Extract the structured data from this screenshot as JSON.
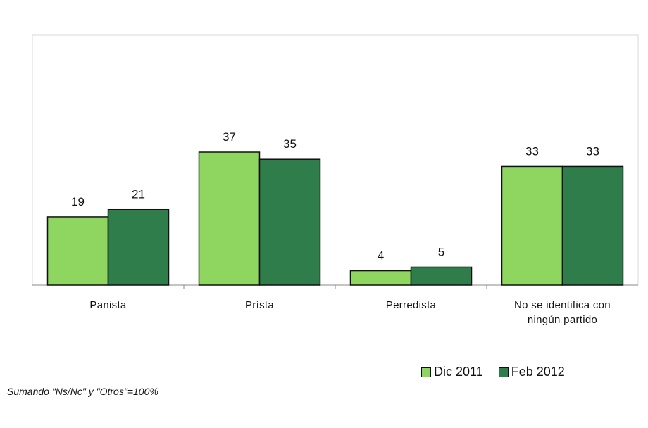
{
  "chart_data": {
    "type": "bar",
    "categories": [
      "Panista",
      "Prísta",
      "Perredista",
      "No se identifica con ningún partido"
    ],
    "category_lines": [
      [
        "Panista"
      ],
      [
        "Prísta"
      ],
      [
        "Perredista"
      ],
      [
        "No se identifica con",
        "ningún partido"
      ]
    ],
    "series": [
      {
        "name": "Dic 2011",
        "values": [
          19,
          37,
          4,
          33
        ],
        "color": "#8ed660"
      },
      {
        "name": "Feb 2012",
        "values": [
          21,
          35,
          5,
          33
        ],
        "color": "#2e7d4a"
      }
    ],
    "ylim": [
      0,
      40
    ],
    "grid": false,
    "legend_position": "bottom-right"
  },
  "footnote": "Sumando \"Ns/Nc\" y \"Otros\"=100%"
}
